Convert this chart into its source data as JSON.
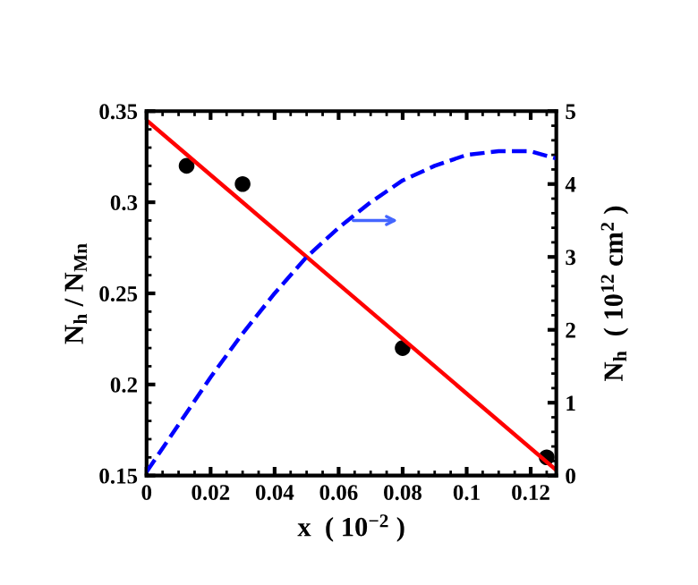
{
  "chart_data": {
    "type": "scatter",
    "xlabel": "x  ( 10$^{−2}$ )",
    "ylabel": "N$_{h}$ / N$_{Mn}$",
    "y2label": "N$_{h}$  ( 10$^{12}$ cm$^{2}$ )",
    "xlim": [
      0,
      0.128
    ],
    "xticks": [
      0,
      0.02,
      0.04,
      0.06,
      0.08,
      0.1,
      0.12
    ],
    "ylim": [
      0.15,
      0.35
    ],
    "yticks": [
      0.15,
      0.2,
      0.25,
      0.3,
      0.35
    ],
    "y2lim": [
      0,
      5
    ],
    "y2ticks": [
      0,
      1,
      2,
      3,
      4,
      5
    ],
    "grid": false,
    "series": [
      {
        "color": "#000000",
        "marker": "circle",
        "x": [
          0.0125,
          0.03,
          0.08,
          0.125
        ],
        "values": [
          0.32,
          0.31,
          0.22,
          0.16
        ]
      },
      {
        "type": "line",
        "color": "#ff0000",
        "line_style": "solid",
        "x": [
          0,
          0.128
        ],
        "values": [
          0.345,
          0.153
        ]
      },
      {
        "type": "line",
        "color": "#0000ff",
        "line_style": "dashed",
        "axis": "y2",
        "x": [
          0,
          0.01,
          0.02,
          0.03,
          0.04,
          0.05,
          0.06,
          0.07,
          0.08,
          0.09,
          0.1,
          0.11,
          0.12,
          0.128
        ],
        "values": [
          0.05,
          0.7,
          1.35,
          1.95,
          2.5,
          3.0,
          3.4,
          3.75,
          4.05,
          4.25,
          4.4,
          4.45,
          4.45,
          4.35
        ]
      }
    ]
  }
}
